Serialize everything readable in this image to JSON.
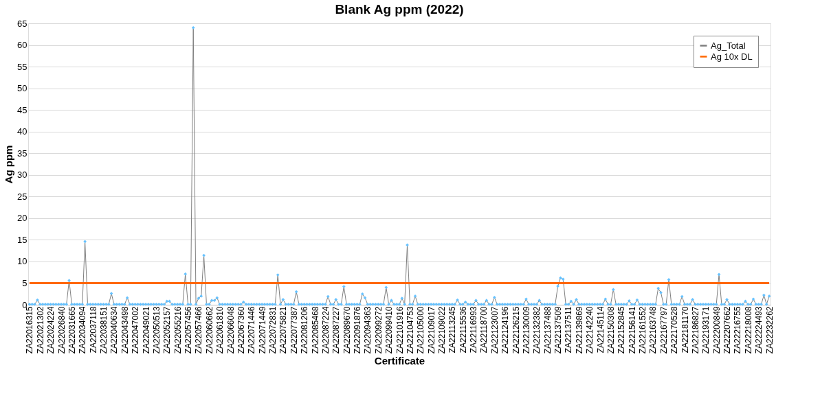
{
  "chart_data": {
    "type": "line",
    "title": "Blank Ag ppm (2022)",
    "xlabel": "Certificate",
    "ylabel": "Ag ppm",
    "categories": [
      "ZA22016315",
      null,
      null,
      null,
      "ZA22021302",
      null,
      null,
      null,
      "ZA22024224",
      null,
      null,
      null,
      "ZA22026840",
      null,
      null,
      null,
      "ZA22031665",
      null,
      null,
      null,
      "ZA22034094",
      null,
      null,
      null,
      "ZA22037118",
      null,
      null,
      null,
      "ZA22038151",
      null,
      null,
      null,
      "ZA22040634",
      null,
      null,
      null,
      "ZA22043498",
      null,
      null,
      null,
      "ZA22047002",
      null,
      null,
      null,
      "ZA22049021",
      null,
      null,
      null,
      "ZA22050513",
      null,
      null,
      null,
      "ZA22052157",
      null,
      null,
      null,
      "ZA22055216",
      null,
      null,
      null,
      "ZA22057456",
      null,
      null,
      null,
      "ZA22057466",
      null,
      null,
      null,
      "ZA22060662",
      null,
      null,
      null,
      "ZA22061810",
      null,
      null,
      null,
      "ZA22066048",
      null,
      null,
      null,
      "ZA22067360",
      null,
      null,
      null,
      "ZA22071446",
      null,
      null,
      null,
      "ZA22071449",
      null,
      null,
      null,
      "ZA22072831",
      null,
      null,
      null,
      "ZA22075821",
      null,
      null,
      null,
      "ZA22077387",
      null,
      null,
      null,
      "ZA22081206",
      null,
      null,
      null,
      "ZA22085468",
      null,
      null,
      null,
      "ZA22087224",
      null,
      null,
      null,
      "ZA22087227",
      null,
      null,
      null,
      "ZA22089670",
      null,
      null,
      null,
      "ZA22091876",
      null,
      null,
      null,
      "ZA22094363",
      null,
      null,
      null,
      "ZA22099272",
      null,
      null,
      null,
      "ZA22099410",
      null,
      null,
      null,
      "ZA22101916",
      null,
      null,
      null,
      "ZA22104753",
      null,
      null,
      null,
      "ZA22105000",
      null,
      null,
      null,
      "ZA22109017",
      null,
      null,
      null,
      "ZA22109022",
      null,
      null,
      null,
      "ZA22113245",
      null,
      null,
      null,
      "ZA22115536",
      null,
      null,
      null,
      "ZA22116993",
      null,
      null,
      null,
      "ZA22118700",
      null,
      null,
      null,
      "ZA22123007",
      null,
      null,
      null,
      "ZA22124196",
      null,
      null,
      null,
      "ZA22126215",
      null,
      null,
      null,
      "ZA22130009",
      null,
      null,
      null,
      "ZA22132382",
      null,
      null,
      null,
      "ZA22137488",
      null,
      null,
      null,
      "ZA22137509",
      null,
      null,
      null,
      "ZA22137511",
      null,
      null,
      null,
      "ZA22139869",
      null,
      null,
      null,
      "ZA22142240",
      null,
      null,
      null,
      "ZA22145114",
      null,
      null,
      null,
      "ZA22150308",
      null,
      null,
      null,
      "ZA22152845",
      null,
      null,
      null,
      "ZA22156141",
      null,
      null,
      null,
      "ZA22161552",
      null,
      null,
      null,
      "ZA22163748",
      null,
      null,
      null,
      "ZA22167797",
      null,
      null,
      null,
      "ZA22170528",
      null,
      null,
      null,
      "ZA22181170",
      null,
      null,
      null,
      "ZA22186827",
      null,
      null,
      null,
      "ZA22193171",
      null,
      null,
      null,
      "ZA22200849",
      null,
      null,
      null,
      "ZA22207662",
      null,
      null,
      null,
      "ZA22216755",
      null,
      null,
      null,
      "ZA22218008",
      null,
      null,
      null,
      "ZA22224493",
      null,
      null,
      null,
      "ZA22232262"
    ],
    "series": [
      {
        "name": "Ag_Total",
        "color": "#7f7f7f",
        "values": [
          0.1,
          0.1,
          0.1,
          1.1,
          0.1,
          0.1,
          0.1,
          0.1,
          0.1,
          0.1,
          0.1,
          0.1,
          0.1,
          0.1,
          0.1,
          5.6,
          0.1,
          0.1,
          0.1,
          0.1,
          0.1,
          14.6,
          0.1,
          0.1,
          0.1,
          0.1,
          0.1,
          0.1,
          0.1,
          0.1,
          0.1,
          2.6,
          0.1,
          0.1,
          0.1,
          0.1,
          0.1,
          1.6,
          0.1,
          0.1,
          0.1,
          0.1,
          0.1,
          0.1,
          0.1,
          0.1,
          0.1,
          0.1,
          0.1,
          0.1,
          0.1,
          0.1,
          0.8,
          0.8,
          0.1,
          0.1,
          0.1,
          0.1,
          0.1,
          7.1,
          0.1,
          0.1,
          64,
          0.1,
          1.5,
          2.0,
          11.4,
          0.1,
          0.1,
          1.0,
          1.0,
          1.6,
          0.1,
          0.1,
          0.1,
          0.1,
          0.1,
          0.1,
          0.1,
          0.1,
          0.1,
          0.6,
          0.1,
          0.1,
          0.1,
          0.1,
          0.1,
          0.1,
          0.1,
          0.1,
          0.1,
          0.1,
          0.1,
          0.1,
          6.9,
          0.1,
          1.2,
          0.1,
          0.1,
          0.1,
          0.1,
          3.0,
          0.1,
          0.1,
          0.1,
          0.1,
          0.1,
          0.1,
          0.1,
          0.1,
          0.1,
          0.1,
          0.1,
          1.9,
          0.1,
          0.1,
          1.2,
          0.1,
          0.1,
          4.2,
          0.1,
          0.1,
          0.1,
          0.1,
          0.1,
          0.1,
          2.5,
          1.6,
          0.1,
          0.1,
          0.1,
          0.1,
          0.1,
          0.1,
          0.1,
          4.0,
          0.1,
          1.0,
          0.1,
          0.1,
          0.1,
          1.5,
          0.1,
          13.8,
          0.1,
          0.1,
          2.0,
          0.1,
          0.1,
          0.1,
          0.1,
          0.1,
          0.1,
          0.1,
          0.1,
          0.1,
          0.1,
          0.1,
          0.1,
          0.1,
          0.1,
          0.1,
          1.1,
          0.1,
          0.1,
          0.6,
          0.1,
          0.1,
          0.1,
          1.0,
          0.1,
          0.1,
          0.1,
          1.0,
          0.1,
          0.1,
          1.7,
          0.1,
          0.1,
          0.1,
          0.1,
          0.1,
          0.1,
          0.1,
          0.1,
          0.1,
          0.1,
          0.1,
          1.3,
          0.1,
          0.1,
          0.1,
          0.1,
          1.0,
          0.1,
          0.1,
          0.1,
          0.1,
          0.1,
          0.1,
          4.3,
          6.2,
          5.9,
          0.1,
          0.1,
          0.8,
          0.1,
          1.2,
          0.1,
          0.1,
          0.1,
          0.1,
          0.1,
          0.1,
          0.1,
          0.1,
          0.1,
          0.1,
          1.3,
          0.1,
          0.1,
          3.5,
          0.1,
          0.1,
          0.1,
          0.1,
          0.1,
          0.9,
          0.1,
          0.1,
          1.1,
          0.1,
          0.1,
          0.1,
          0.1,
          0.1,
          0.1,
          0.1,
          3.8,
          2.8,
          0.1,
          0.1,
          5.8,
          0.1,
          0.1,
          0.1,
          0.1,
          1.9,
          0.1,
          0.1,
          0.1,
          1.2,
          0.1,
          0.1,
          0.1,
          0.1,
          0.1,
          0.1,
          0.1,
          0.1,
          0.1,
          7.0,
          0.1,
          0.1,
          1.2,
          0.1,
          0.1,
          0.1,
          0.1,
          0.1,
          0.1,
          0.8,
          0.1,
          0.1,
          1.3,
          0.1,
          0.1,
          0.1,
          2.2,
          0.1,
          2.0
        ]
      }
    ],
    "ref_lines": [
      {
        "axis": "y",
        "value": 5,
        "label": "Ag 10x DL",
        "color": "#ff6600"
      }
    ],
    "ylim": [
      0,
      65
    ],
    "yticks": [
      0,
      5,
      10,
      15,
      20,
      25,
      30,
      35,
      40,
      45,
      50,
      55,
      60,
      65
    ],
    "grid": "y",
    "legend": "top right",
    "marker": "diamond",
    "line_style": "solid"
  }
}
